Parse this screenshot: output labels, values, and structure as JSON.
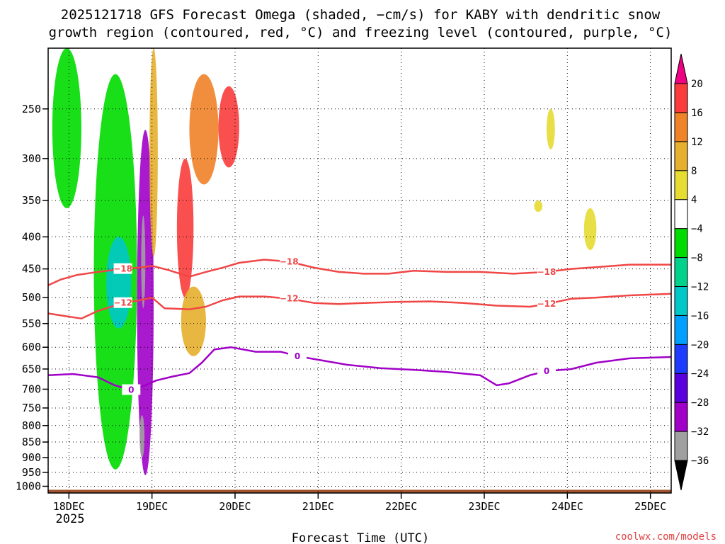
{
  "chart_data": {
    "type": "heatmap",
    "title_line1": "2025121718 GFS Forecast Omega (shaded, −cm/s) for KABY with dendritic snow",
    "title_line2": "growth region (contoured, red, °C) and freezing level (contoured, purple, °C)",
    "xlabel": "Forecast Time (UTC)",
    "ylabel": "",
    "x_ticks": [
      "18DEC",
      "19DEC",
      "20DEC",
      "21DEC",
      "22DEC",
      "23DEC",
      "24DEC",
      "25DEC"
    ],
    "x_tick_values": [
      0.25,
      1.25,
      2.25,
      3.25,
      4.25,
      5.25,
      6.25,
      7.25
    ],
    "x_year_label": "2025",
    "xlim": [
      0,
      7.5
    ],
    "y_ticks": [
      250,
      300,
      350,
      400,
      450,
      500,
      550,
      600,
      650,
      700,
      750,
      800,
      850,
      900,
      950,
      1000
    ],
    "ylim": [
      1025,
      200
    ],
    "y_scale": "log-pressure (inverted)",
    "grid": true,
    "colorbar": {
      "levels": [
        -36,
        -32,
        -28,
        -24,
        -20,
        -16,
        -12,
        -8,
        -4,
        4,
        8,
        12,
        16,
        20
      ],
      "labels": [
        "20",
        "16",
        "12",
        "8",
        "4",
        "−4",
        "−8",
        "−12",
        "−16",
        "−20",
        "−24",
        "−28",
        "−32",
        "−36"
      ],
      "colors": [
        "#000000",
        "#a0a0a0",
        "#a000c8",
        "#5a00dc",
        "#1e3cff",
        "#00a0ff",
        "#00c8c8",
        "#00d28c",
        "#00dc00",
        "#ffffff",
        "#e6dc32",
        "#e6af2d",
        "#f08228",
        "#fa3c3c",
        "#f00082"
      ],
      "position": "right"
    },
    "contours": [
      {
        "label": "−18",
        "color": "#f04646",
        "x": [
          0,
          0.15,
          0.35,
          0.6,
          0.9,
          1.1,
          1.25,
          1.45,
          1.7,
          1.9,
          2.1,
          2.3,
          2.6,
          2.9,
          3.2,
          3.5,
          3.8,
          4.1,
          4.4,
          4.8,
          5.2,
          5.6,
          6.0,
          6.3,
          6.6,
          7.0,
          7.5
        ],
        "y": [
          478,
          468,
          460,
          455,
          450,
          448,
          445,
          452,
          463,
          455,
          448,
          440,
          435,
          438,
          448,
          455,
          458,
          458,
          453,
          455,
          455,
          458,
          455,
          450,
          447,
          443,
          443
        ]
      },
      {
        "label": "−12",
        "color": "#f04646",
        "x": [
          0,
          0.2,
          0.4,
          0.6,
          0.9,
          1.1,
          1.25,
          1.4,
          1.7,
          1.9,
          2.1,
          2.3,
          2.6,
          2.9,
          3.2,
          3.5,
          3.8,
          4.2,
          4.6,
          5.0,
          5.4,
          5.8,
          6.0,
          6.3,
          6.6,
          7.0,
          7.5
        ],
        "y": [
          530,
          535,
          540,
          525,
          510,
          505,
          500,
          520,
          522,
          517,
          505,
          498,
          498,
          502,
          510,
          512,
          510,
          508,
          507,
          510,
          515,
          517,
          512,
          502,
          500,
          496,
          493
        ]
      },
      {
        "label": "0",
        "color": "#a000c8",
        "x": [
          0,
          0.3,
          0.6,
          0.8,
          1.0,
          1.15,
          1.3,
          1.5,
          1.7,
          1.85,
          2.0,
          2.2,
          2.5,
          2.8,
          3.0,
          3.3,
          3.6,
          4.0,
          4.4,
          4.8,
          5.2,
          5.4,
          5.55,
          5.8,
          6.0,
          6.3,
          6.6,
          7.0,
          7.5
        ],
        "y": [
          665,
          662,
          670,
          690,
          702,
          692,
          678,
          668,
          660,
          635,
          605,
          600,
          610,
          610,
          620,
          630,
          640,
          648,
          652,
          657,
          665,
          690,
          685,
          665,
          655,
          650,
          635,
          625,
          622
        ]
      }
    ],
    "shaded_features": [
      {
        "x": [
          1.07,
          1.27
        ],
        "p": [
          270,
          960
        ],
        "value": -30
      },
      {
        "x": [
          1.12,
          1.17
        ],
        "p": [
          370,
          520
        ],
        "value": -36
      },
      {
        "x": [
          1.1,
          1.16
        ],
        "p": [
          770,
          900
        ],
        "value": -36
      },
      {
        "x": [
          0.55,
          1.07
        ],
        "p": [
          220,
          940
        ],
        "value": -8
      },
      {
        "x": [
          0.7,
          1.0
        ],
        "p": [
          400,
          560
        ],
        "value": -16
      },
      {
        "x": [
          0.05,
          0.4
        ],
        "p": [
          200,
          360
        ],
        "value": -8
      },
      {
        "x": [
          1.22,
          1.32
        ],
        "p": [
          200,
          430
        ],
        "value": 8
      },
      {
        "x": [
          1.55,
          1.75
        ],
        "p": [
          300,
          500
        ],
        "value": 16
      },
      {
        "x": [
          1.7,
          2.05
        ],
        "p": [
          220,
          330
        ],
        "value": 12
      },
      {
        "x": [
          1.6,
          1.9
        ],
        "p": [
          480,
          620
        ],
        "value": 8
      },
      {
        "x": [
          2.05,
          2.3
        ],
        "p": [
          230,
          310
        ],
        "value": 16
      },
      {
        "x": [
          6.0,
          6.1
        ],
        "p": [
          250,
          290
        ],
        "value": 4
      },
      {
        "x": [
          6.45,
          6.6
        ],
        "p": [
          360,
          420
        ],
        "value": 4
      },
      {
        "x": [
          5.85,
          5.95
        ],
        "p": [
          350,
          365
        ],
        "value": 4
      }
    ],
    "surface_terrain": "brown band near 1000 hPa"
  },
  "credit": "coolwx.com/models"
}
